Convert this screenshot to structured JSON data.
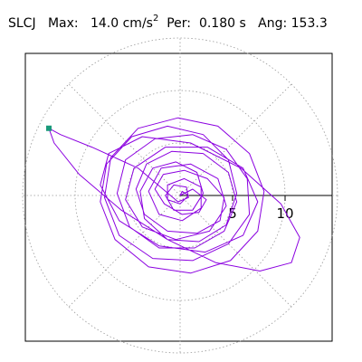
{
  "header": {
    "station": "SLCJ",
    "max_label": "Max:",
    "max_value": "14.0 cm/s",
    "max_exp": "2",
    "per_label": "Per:",
    "per_value": "0.180 s",
    "ang_label": "Ang:",
    "ang_value": "153.3"
  },
  "chart_data": {
    "type": "line",
    "subtype": "polar particle-motion orbit",
    "title": "SLCJ Max: 14.0 cm/s2 Per: 0.180 s Ang: 153.3",
    "radial_ticks": [
      5,
      10
    ],
    "tick_labels": [
      "5",
      "10"
    ],
    "rings": [
      5,
      10,
      15
    ],
    "spokes_deg": [
      0,
      45,
      90,
      135,
      180,
      225,
      270,
      315
    ],
    "grid": true,
    "series": [
      {
        "color": "#8B00E0",
        "peak_point": {
          "x": -12.5,
          "y": 6.4
        },
        "points": [
          [
            0,
            0
          ],
          [
            1.2,
            0.6
          ],
          [
            2.5,
            -0.4
          ],
          [
            1.8,
            -1.6
          ],
          [
            0.2,
            -1.8
          ],
          [
            -1.5,
            -0.8
          ],
          [
            -2.4,
            0.6
          ],
          [
            -1.6,
            2.0
          ],
          [
            0.4,
            2.4
          ],
          [
            2.6,
            1.6
          ],
          [
            4.2,
            -0.2
          ],
          [
            3.8,
            -2.4
          ],
          [
            1.6,
            -3.6
          ],
          [
            -1.2,
            -3.4
          ],
          [
            -3.4,
            -1.8
          ],
          [
            -4.2,
            0.6
          ],
          [
            -3.2,
            3.0
          ],
          [
            -0.8,
            4.2
          ],
          [
            2.2,
            4.0
          ],
          [
            4.6,
            2.2
          ],
          [
            5.4,
            -0.6
          ],
          [
            4.2,
            -3.4
          ],
          [
            1.4,
            -5.0
          ],
          [
            -2.0,
            -5.0
          ],
          [
            -4.8,
            -3.0
          ],
          [
            -6.0,
            0.2
          ],
          [
            -5.2,
            3.4
          ],
          [
            -2.4,
            5.4
          ],
          [
            1.2,
            5.8
          ],
          [
            4.4,
            4.4
          ],
          [
            6.4,
            1.6
          ],
          [
            6.6,
            -1.8
          ],
          [
            4.6,
            -4.6
          ],
          [
            1.2,
            -6.2
          ],
          [
            -2.6,
            -6.0
          ],
          [
            -5.8,
            -3.8
          ],
          [
            -7.2,
            -0.2
          ],
          [
            -6.6,
            3.6
          ],
          [
            -4.0,
            6.4
          ],
          [
            -0.2,
            7.4
          ],
          [
            3.6,
            6.6
          ],
          [
            6.6,
            4.0
          ],
          [
            8.0,
            0.4
          ],
          [
            7.4,
            -3.4
          ],
          [
            4.8,
            -6.2
          ],
          [
            1.0,
            -7.4
          ],
          [
            -3.0,
            -6.8
          ],
          [
            -6.2,
            -4.2
          ],
          [
            -7.6,
            -0.6
          ],
          [
            -7.0,
            3.0
          ],
          [
            -4.6,
            5.6
          ],
          [
            -1.2,
            6.6
          ],
          [
            2.2,
            5.8
          ],
          [
            4.6,
            3.4
          ],
          [
            5.4,
            0.2
          ],
          [
            4.4,
            -2.8
          ],
          [
            1.8,
            -4.4
          ],
          [
            -1.2,
            -4.2
          ],
          [
            -3.4,
            -2.2
          ],
          [
            -3.8,
            0.4
          ],
          [
            -2.6,
            2.6
          ],
          [
            -0.4,
            3.2
          ],
          [
            1.6,
            2.2
          ],
          [
            2.2,
            0.2
          ],
          [
            1.2,
            -1.4
          ],
          [
            -0.6,
            -1.4
          ],
          [
            -1.4,
            0.0
          ],
          [
            -0.6,
            1.0
          ],
          [
            0.6,
            0.8
          ],
          [
            0.8,
            -0.2
          ],
          [
            -0.2,
            -0.6
          ],
          [
            -4.0,
            2.6
          ],
          [
            -8.4,
            4.6
          ],
          [
            -11.4,
            5.8
          ],
          [
            -12.5,
            6.4
          ],
          [
            -12.0,
            5.0
          ],
          [
            -9.6,
            2.0
          ],
          [
            -5.6,
            -1.4
          ],
          [
            -1.2,
            -4.2
          ],
          [
            3.4,
            -6.4
          ],
          [
            7.6,
            -7.2
          ],
          [
            10.6,
            -6.4
          ],
          [
            11.4,
            -4.0
          ],
          [
            9.6,
            -0.8
          ],
          [
            5.8,
            2.6
          ],
          [
            1.0,
            5.0
          ],
          [
            -3.6,
            5.6
          ],
          [
            -6.8,
            4.0
          ],
          [
            -7.6,
            1.0
          ],
          [
            -5.8,
            -2.4
          ],
          [
            -2.0,
            -4.8
          ],
          [
            2.4,
            -5.4
          ],
          [
            6.0,
            -3.8
          ],
          [
            7.4,
            -0.6
          ],
          [
            6.0,
            2.6
          ],
          [
            2.6,
            4.6
          ],
          [
            -1.4,
            4.6
          ],
          [
            -4.4,
            2.6
          ],
          [
            -5.2,
            -0.4
          ],
          [
            -3.6,
            -3.0
          ],
          [
            -0.4,
            -4.2
          ],
          [
            2.8,
            -3.4
          ],
          [
            4.4,
            -1.0
          ],
          [
            3.6,
            1.6
          ],
          [
            1.0,
            3.0
          ],
          [
            -1.8,
            2.6
          ],
          [
            -3.0,
            0.4
          ],
          [
            -2.0,
            -1.8
          ],
          [
            0.2,
            -2.4
          ],
          [
            2.0,
            -1.2
          ],
          [
            2.0,
            0.8
          ],
          [
            0.4,
            1.6
          ],
          [
            -1.2,
            1.0
          ],
          [
            -1.2,
            -0.4
          ],
          [
            0.0,
            -0.8
          ],
          [
            0.8,
            0.0
          ],
          [
            0.2,
            0.4
          ],
          [
            0,
            0
          ]
        ]
      }
    ],
    "end_marker": {
      "color": "#1A9A7A"
    }
  }
}
